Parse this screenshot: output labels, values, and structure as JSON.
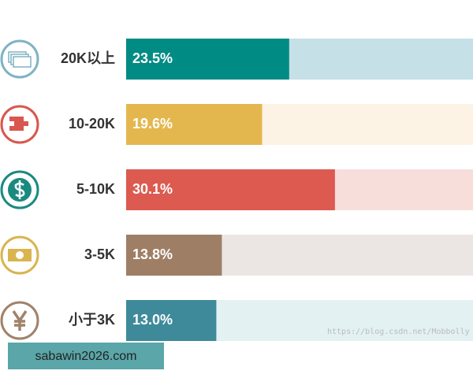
{
  "chart_data": {
    "type": "bar",
    "categories": [
      "20K以上",
      "10-20K",
      "5-10K",
      "3-5K",
      "小于3K"
    ],
    "values": [
      23.5,
      19.6,
      30.1,
      13.8,
      13.0
    ],
    "value_labels": [
      "23.5%",
      "19.6%",
      "30.1%",
      "13.8%",
      "13.0%"
    ],
    "colors": [
      "#008b84",
      "#e4b74e",
      "#dc5a50",
      "#9e7f66",
      "#3e8a9a"
    ],
    "track_colors": [
      "#c5e0e6",
      "#fdf3e4",
      "#f8dedb",
      "#ebe6e3",
      "#e3f1f3"
    ],
    "icon_colors": [
      "#7fb3c4",
      "#d9574e",
      "#1a8a80",
      "#d9b44f",
      "#a0826b"
    ],
    "xlim": [
      0,
      50
    ]
  },
  "watermark": "https://blog.csdn.net/Mobbolly",
  "banner": "sabawin2026.com"
}
